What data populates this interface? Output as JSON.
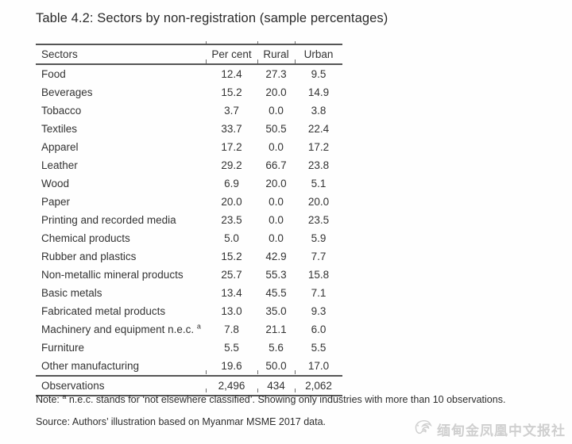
{
  "title": "Table 4.2: Sectors by non-registration (sample percentages)",
  "table": {
    "columns": [
      "Sectors",
      "Per cent",
      "Rural",
      "Urban"
    ],
    "rows": [
      {
        "sector": "Food",
        "per_cent": "12.4",
        "rural": "27.3",
        "urban": "9.5"
      },
      {
        "sector": "Beverages",
        "per_cent": "15.2",
        "rural": "20.0",
        "urban": "14.9"
      },
      {
        "sector": "Tobacco",
        "per_cent": "3.7",
        "rural": "0.0",
        "urban": "3.8"
      },
      {
        "sector": "Textiles",
        "per_cent": "33.7",
        "rural": "50.5",
        "urban": "22.4"
      },
      {
        "sector": "Apparel",
        "per_cent": "17.2",
        "rural": "0.0",
        "urban": "17.2"
      },
      {
        "sector": "Leather",
        "per_cent": "29.2",
        "rural": "66.7",
        "urban": "23.8"
      },
      {
        "sector": "Wood",
        "per_cent": "6.9",
        "rural": "20.0",
        "urban": "5.1"
      },
      {
        "sector": "Paper",
        "per_cent": "20.0",
        "rural": "0.0",
        "urban": "20.0"
      },
      {
        "sector": "Printing and recorded media",
        "per_cent": "23.5",
        "rural": "0.0",
        "urban": "23.5"
      },
      {
        "sector": "Chemical products",
        "per_cent": "5.0",
        "rural": "0.0",
        "urban": "5.9"
      },
      {
        "sector": "Rubber and plastics",
        "per_cent": "15.2",
        "rural": "42.9",
        "urban": "7.7"
      },
      {
        "sector": "Non-metallic mineral products",
        "per_cent": "25.7",
        "rural": "55.3",
        "urban": "15.8"
      },
      {
        "sector": "Basic metals",
        "per_cent": "13.4",
        "rural": "45.5",
        "urban": "7.1"
      },
      {
        "sector": "Fabricated metal products",
        "per_cent": "13.0",
        "rural": "35.0",
        "urban": "9.3"
      },
      {
        "sector": "Machinery and equipment n.e.c.",
        "sup": "a",
        "per_cent": "7.8",
        "rural": "21.1",
        "urban": "6.0"
      },
      {
        "sector": "Furniture",
        "per_cent": "5.5",
        "rural": "5.6",
        "urban": "5.5"
      },
      {
        "sector": "Other manufacturing",
        "per_cent": "19.6",
        "rural": "50.0",
        "urban": "17.0"
      }
    ],
    "footer": {
      "label": "Observations",
      "per_cent": "2,496",
      "rural": "434",
      "urban": "2,062"
    }
  },
  "note": {
    "prefix": "Note: ",
    "sup": "a",
    "text": " n.e.c. stands for ‘not elsewhere classified’. Showing only industries with more than 10 observations."
  },
  "source": "Source: Authors’ illustration based on Myanmar MSME 2017 data.",
  "watermark": {
    "logo_icon": "phoenix-logo-icon",
    "text": "缅甸金凤凰中文报社"
  },
  "colors": {
    "text": "#333333",
    "rule": "#555555",
    "watermark": "#cfcfcf",
    "background": "#fefefe"
  }
}
